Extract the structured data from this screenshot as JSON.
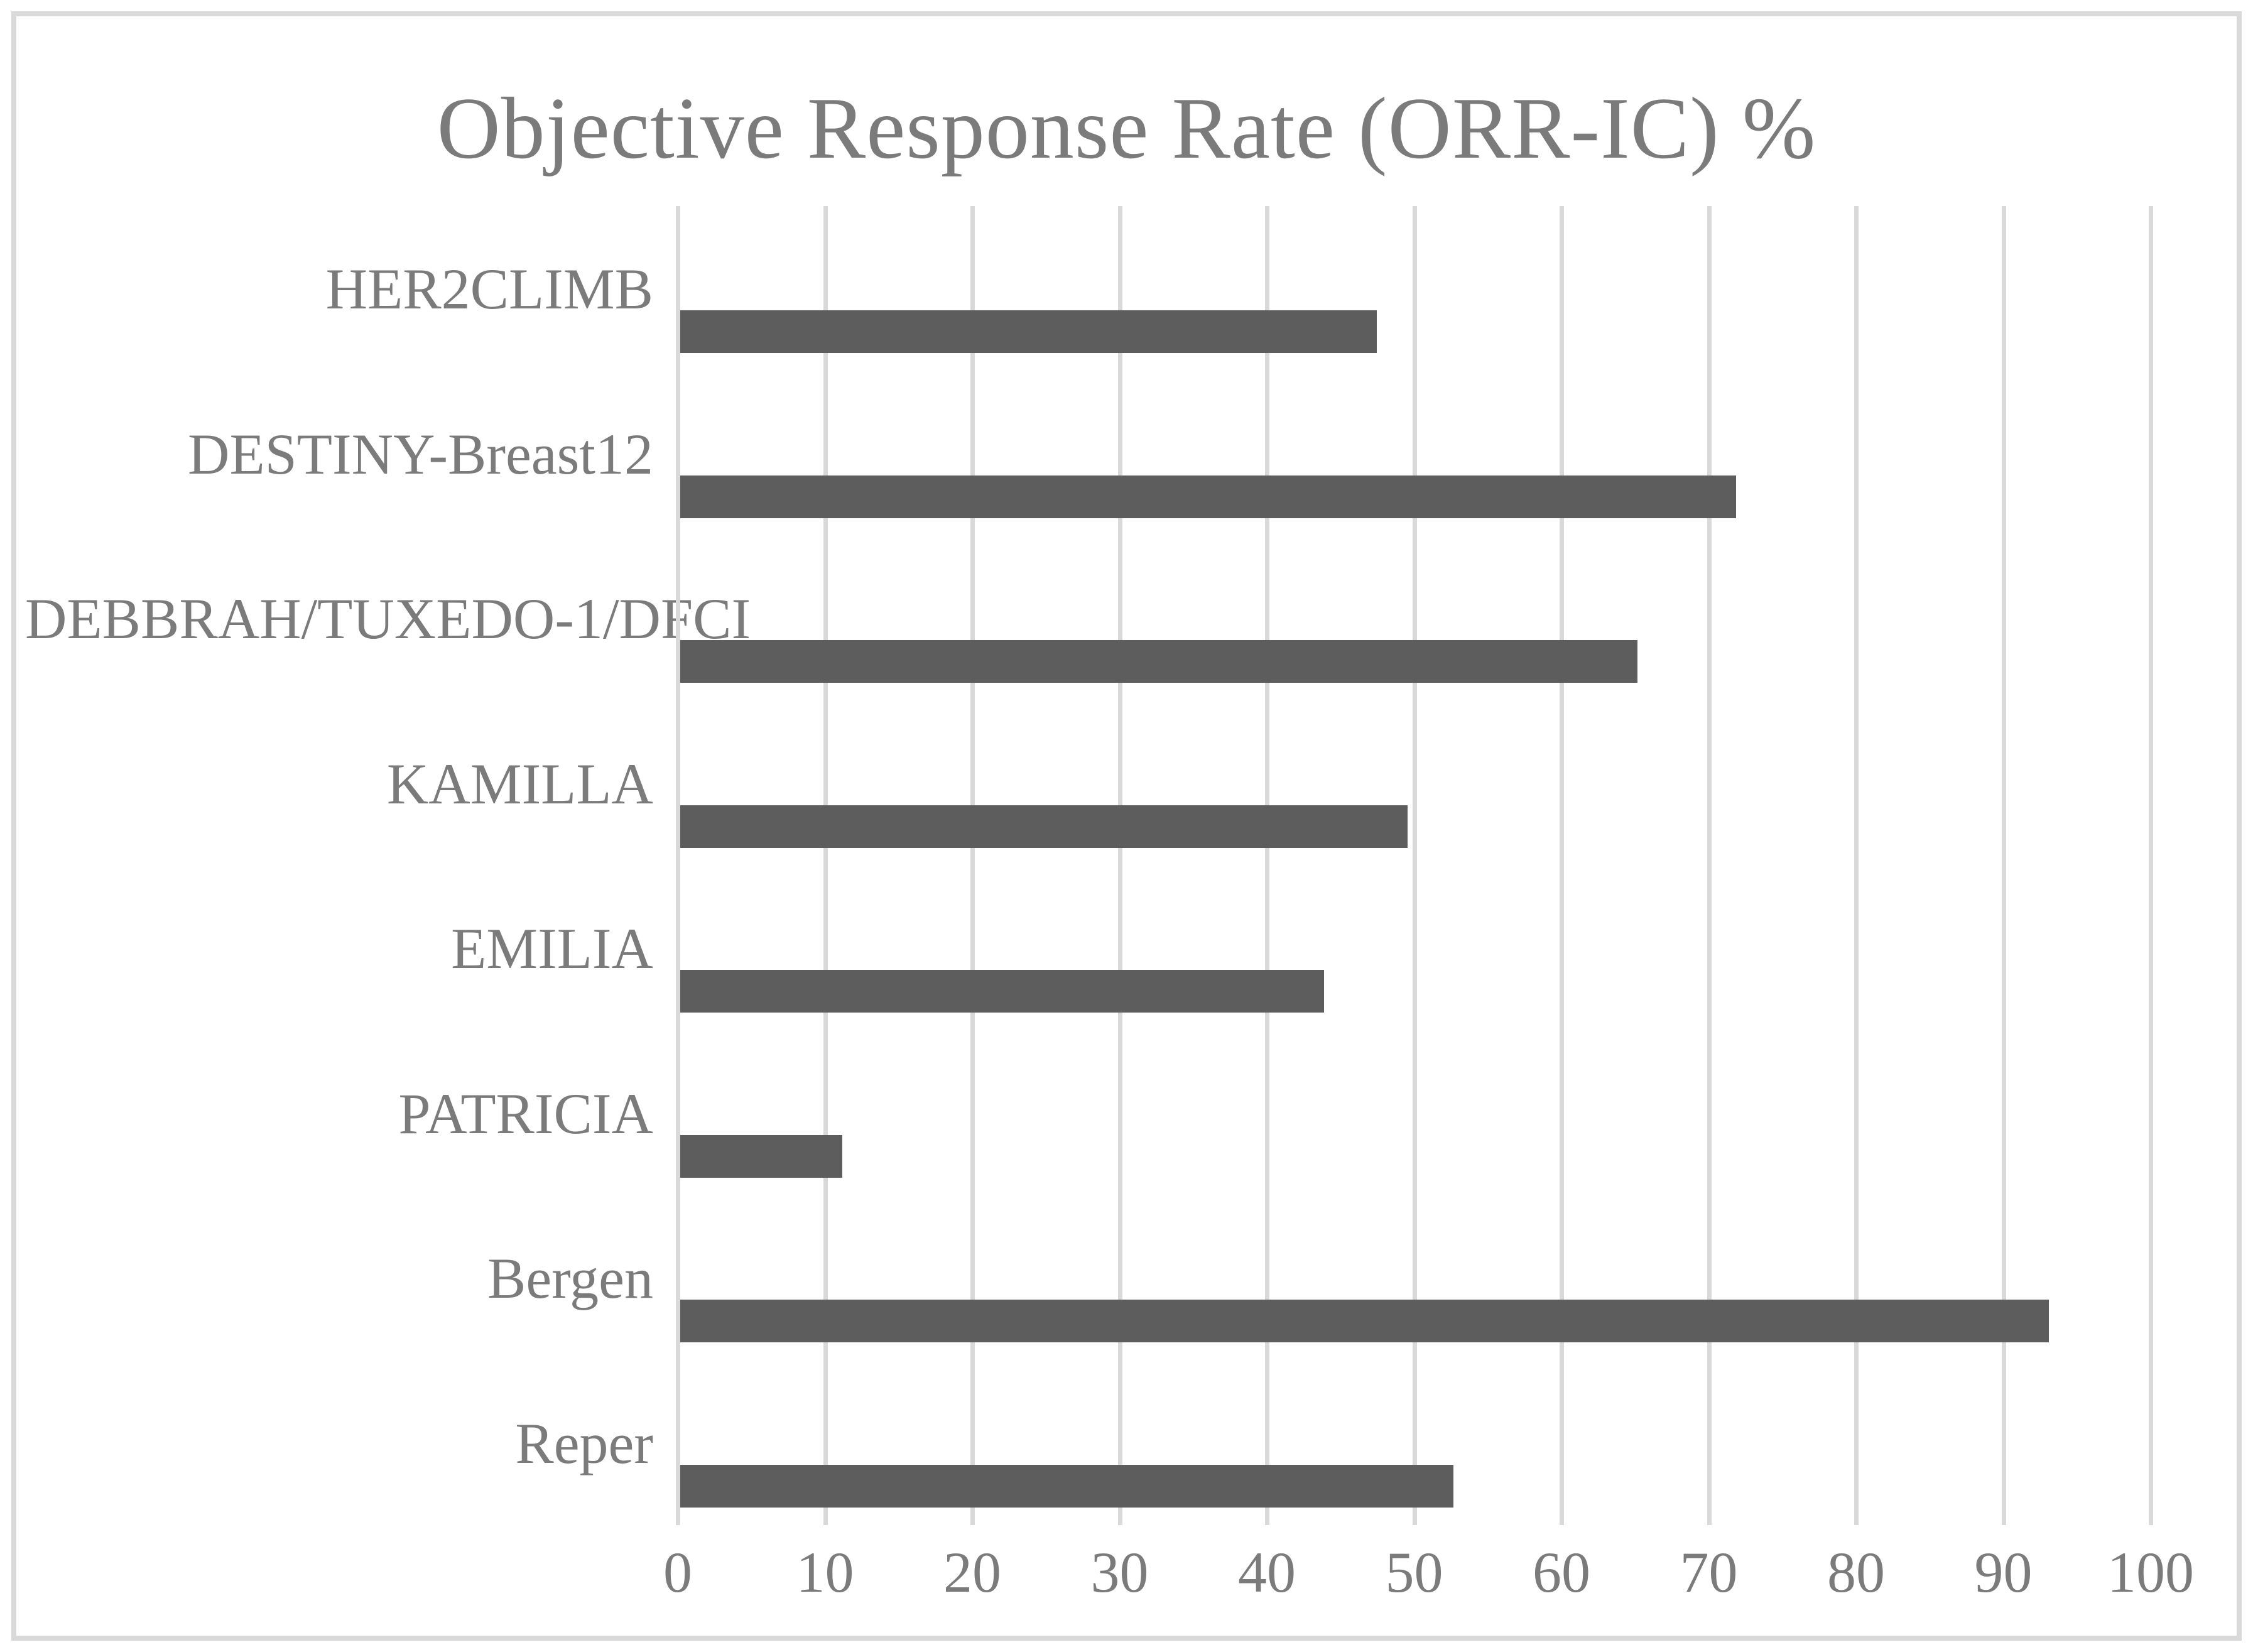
{
  "page": {
    "background": "#ffffff",
    "border_color": "#d9d9d9"
  },
  "chart_data": {
    "type": "bar",
    "orientation": "horizontal",
    "title": "Objective Response Rate (ORR-IC) %",
    "categories": [
      "HER2CLIMB",
      "DESTINY-Breast12",
      "DEBBRAH/TUXEDO-1/DFCI",
      "KAMILLA",
      "EMILIA",
      "PATRICIA",
      "Bergen",
      "Reper"
    ],
    "values": [
      47.3,
      71.7,
      65,
      49.4,
      43.7,
      11,
      92.9,
      52.5
    ],
    "xlabel": "",
    "ylabel": "",
    "xlim": [
      0,
      100
    ],
    "x_ticks": [
      0,
      10,
      20,
      30,
      40,
      50,
      60,
      70,
      80,
      90,
      100
    ],
    "grid": "vertical-gridlines-on",
    "legend": "none",
    "bar_color": "#5d5d5d",
    "gridline_color": "#d9d9d9",
    "text_color": "#7b7b7b"
  }
}
